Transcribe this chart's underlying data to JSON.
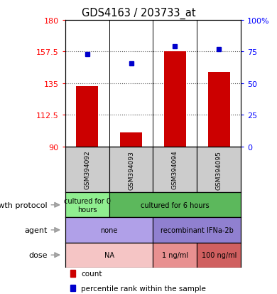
{
  "title": "GDS4163 / 203733_at",
  "samples": [
    "GSM394092",
    "GSM394093",
    "GSM394094",
    "GSM394095"
  ],
  "bar_values": [
    133,
    100,
    157.5,
    143
  ],
  "dot_values": [
    73,
    66,
    79,
    77
  ],
  "ylim_left": [
    90,
    180
  ],
  "yticks_left": [
    90,
    112.5,
    135,
    157.5,
    180
  ],
  "yticks_right": [
    0,
    25,
    50,
    75,
    100
  ],
  "bar_color": "#cc0000",
  "dot_color": "#0000cc",
  "bar_width": 0.5,
  "growth_protocol": {
    "col0_label": "cultured for 0\nhours",
    "col123_label": "cultured for 6 hours",
    "color0": "#90ee90",
    "color123": "#5cb85c"
  },
  "agent": {
    "col01_label": "none",
    "col23_label": "recombinant IFNa-2b",
    "color01": "#b0a0e8",
    "color23": "#9080d0"
  },
  "dose": {
    "col01_label": "NA",
    "col2_label": "1 ng/ml",
    "col3_label": "100 ng/ml",
    "color01": "#f5c5c5",
    "color2": "#e89090",
    "color3": "#d06060"
  },
  "row_labels": [
    "growth protocol",
    "agent",
    "dose"
  ],
  "legend_count": "count",
  "legend_pct": "percentile rank within the sample",
  "grid_color": "#555555",
  "axis_bg": "#cccccc",
  "label_fontsize": 8,
  "tick_fontsize": 8
}
